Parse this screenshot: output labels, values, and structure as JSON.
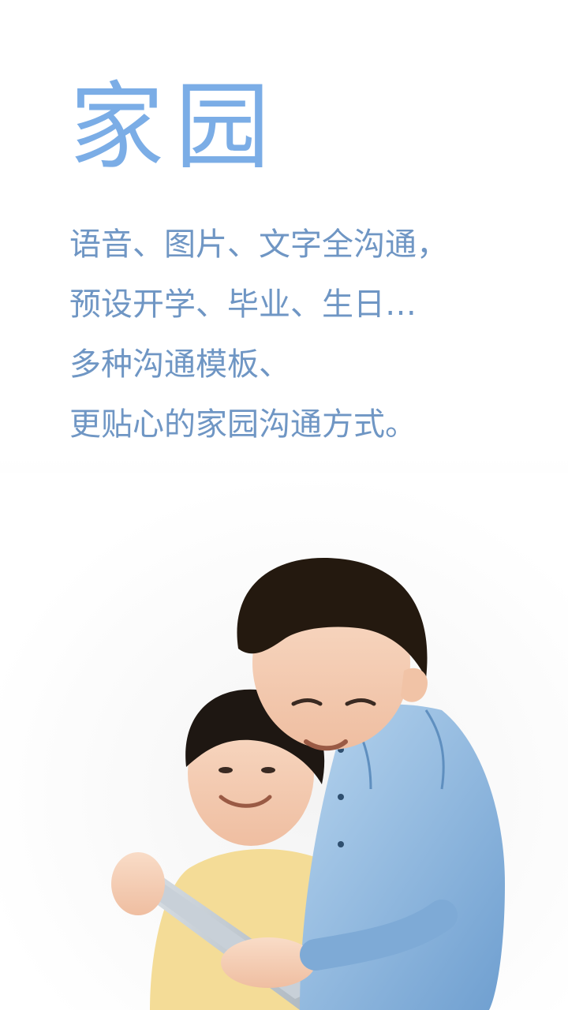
{
  "page": {
    "title": "家园",
    "lines": [
      "语音、图片、文字全沟通，",
      "预设开学、毕业、生日…",
      "多种沟通模板、",
      "更贴心的家园沟通方式。"
    ]
  },
  "colors": {
    "title": "#7bade6",
    "text": "#6f96c4",
    "background": "#ffffff"
  },
  "image": {
    "subject": "two children looking at a tablet"
  }
}
